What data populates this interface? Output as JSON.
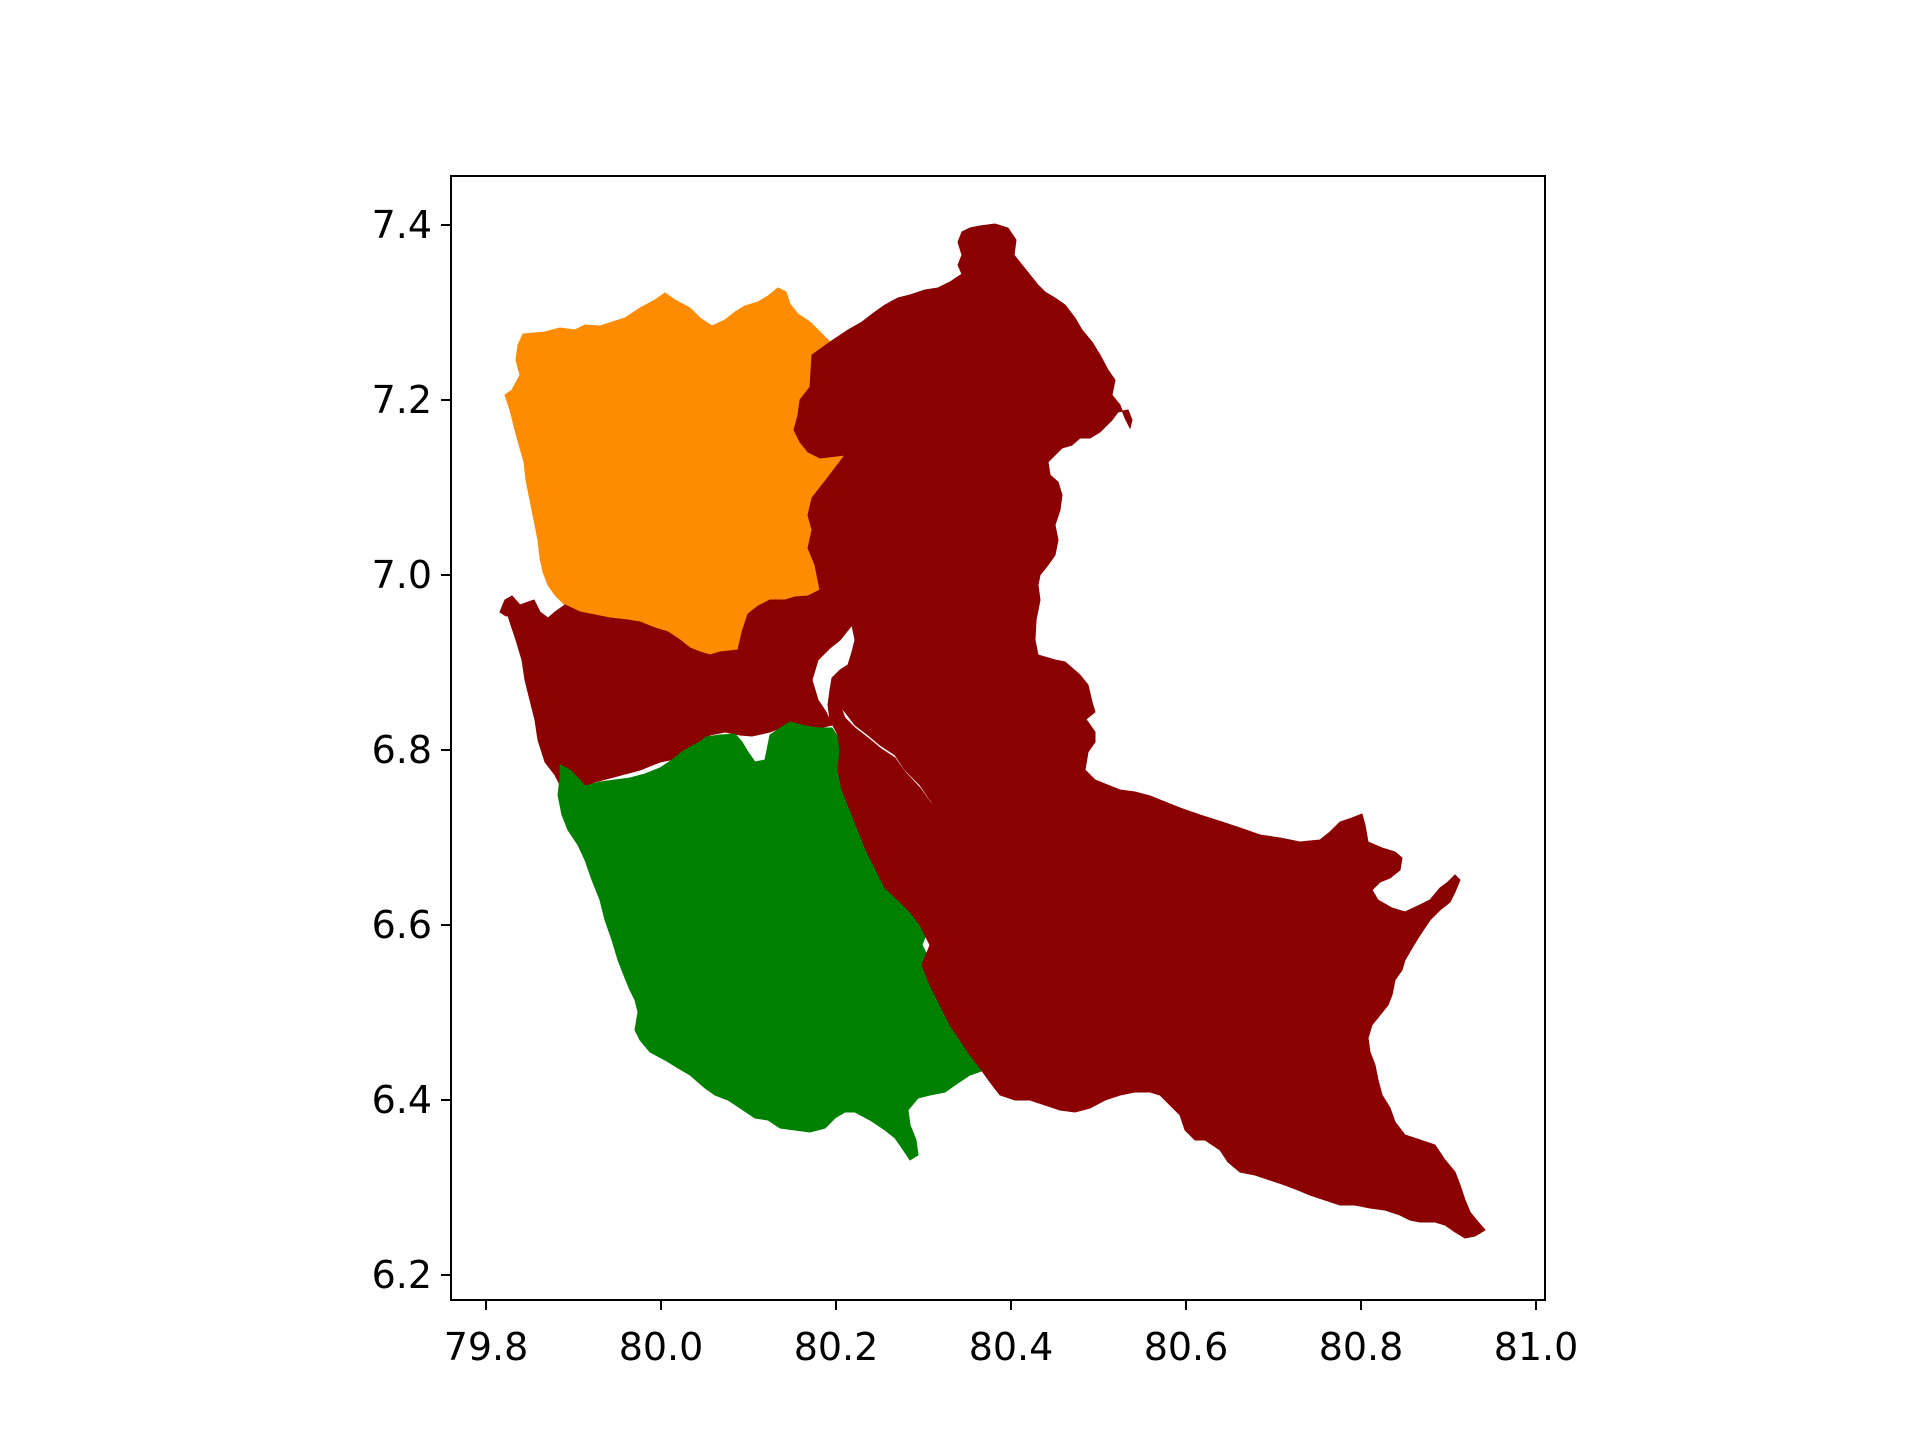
{
  "chart_data": {
    "type": "map",
    "title": "",
    "xlabel": "",
    "ylabel": "",
    "xlim": [
      79.76,
      81.01
    ],
    "ylim": [
      6.17,
      7.46
    ],
    "x_ticks": [
      "79.8",
      "80.0",
      "80.2",
      "80.4",
      "80.6",
      "80.8",
      "81.0"
    ],
    "y_ticks": [
      "6.2",
      "6.4",
      "6.6",
      "6.8",
      "7.0",
      "7.2",
      "7.4"
    ],
    "grid": false,
    "legend": "none",
    "colors": {
      "region_orange": "#ff8c00",
      "region_green": "#008000",
      "region_darkred": "#8b0000"
    },
    "regions": [
      {
        "color": "region_orange"
      },
      {
        "color": "region_green"
      },
      {
        "color": "region_darkred"
      },
      {
        "color": "region_darkred"
      },
      {
        "color": "region_darkred"
      },
      {
        "color": "region_darkred"
      },
      {
        "color": "region_darkred"
      }
    ]
  }
}
